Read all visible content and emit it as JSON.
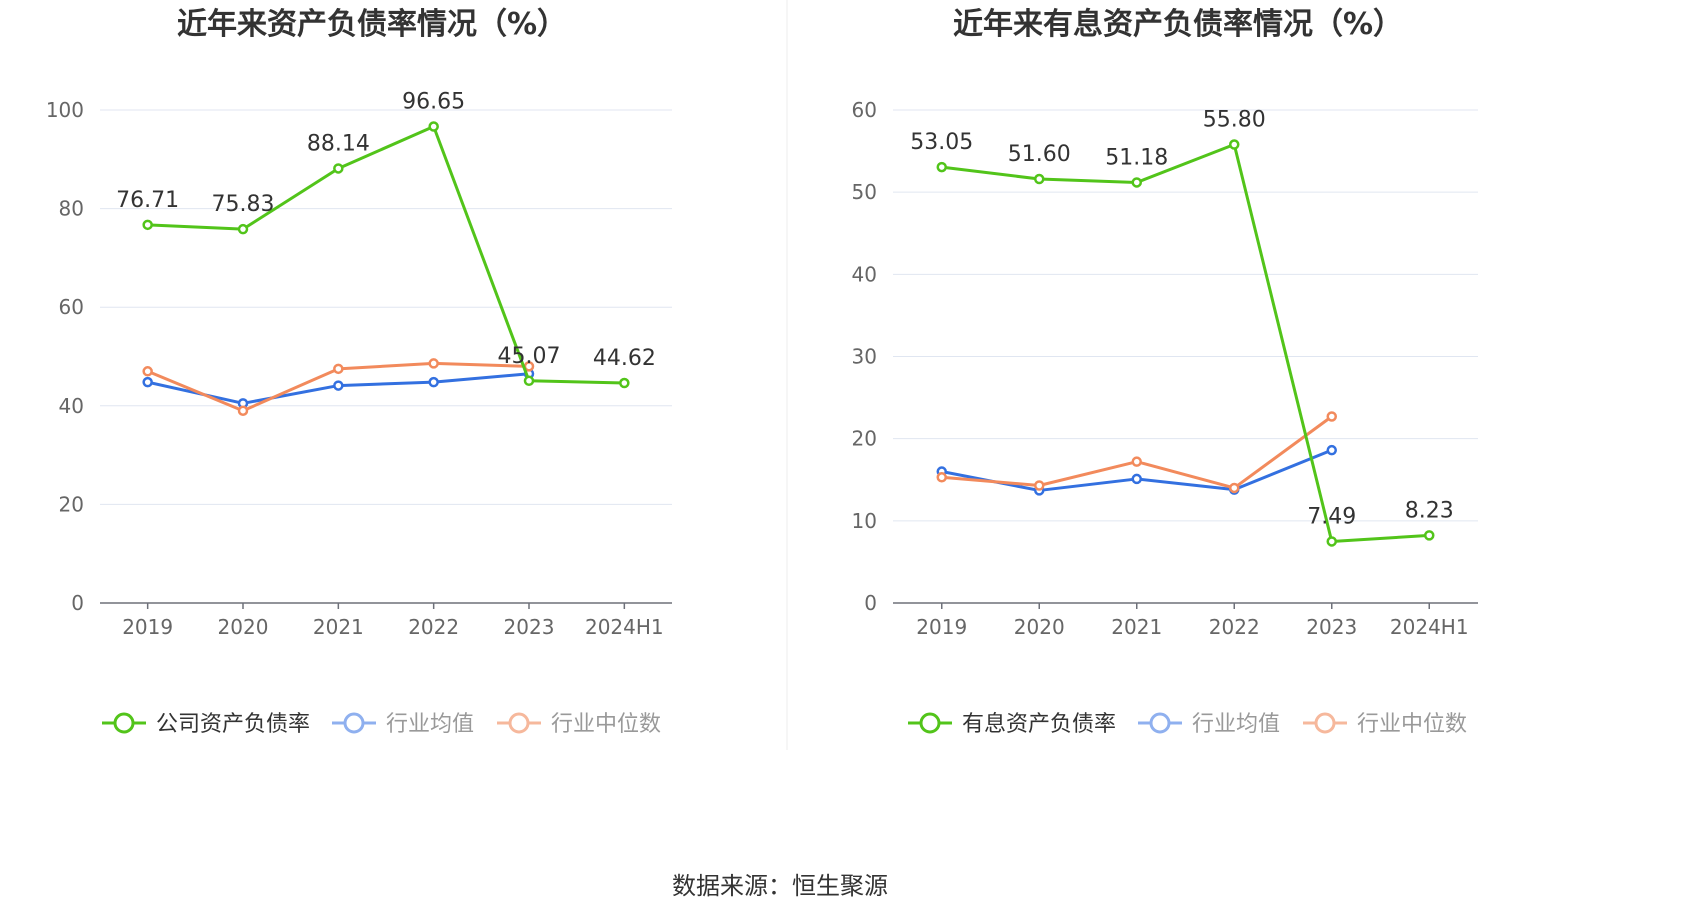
{
  "chart_data": [
    {
      "type": "line",
      "title": "近年来资产负债率情况（%）",
      "categories": [
        "2019",
        "2020",
        "2021",
        "2022",
        "2023",
        "2024H1"
      ],
      "ylim": [
        0,
        100
      ],
      "yticks": [
        0,
        20,
        40,
        60,
        80,
        100
      ],
      "grid": true,
      "legend_position": "bottom",
      "series": [
        {
          "name": "公司资产负债率",
          "color": "#52c41a",
          "labeled": true,
          "values": [
            76.71,
            75.83,
            88.14,
            96.65,
            45.07,
            44.62
          ],
          "labels": [
            "76.71",
            "75.83",
            "88.14",
            "96.65",
            "45.07",
            "44.62"
          ]
        },
        {
          "name": "行业均值",
          "color": "#3370e0",
          "labeled": false,
          "values": [
            44.8,
            40.5,
            44.1,
            44.8,
            46.5,
            null
          ]
        },
        {
          "name": "行业中位数",
          "color": "#f28a5c",
          "labeled": false,
          "values": [
            47.0,
            39.0,
            47.5,
            48.6,
            48.0,
            null
          ]
        }
      ]
    },
    {
      "type": "line",
      "title": "近年来有息资产负债率情况（%）",
      "categories": [
        "2019",
        "2020",
        "2021",
        "2022",
        "2023",
        "2024H1"
      ],
      "ylim": [
        0,
        60
      ],
      "yticks": [
        0,
        10,
        20,
        30,
        40,
        50,
        60
      ],
      "grid": true,
      "legend_position": "bottom",
      "series": [
        {
          "name": "有息资产负债率",
          "color": "#52c41a",
          "labeled": true,
          "values": [
            53.05,
            51.6,
            51.18,
            55.8,
            7.49,
            8.23
          ],
          "labels": [
            "53.05",
            "51.60",
            "51.18",
            "55.80",
            "7.49",
            "8.23"
          ]
        },
        {
          "name": "行业均值",
          "color": "#3370e0",
          "labeled": false,
          "values": [
            16.0,
            13.7,
            15.1,
            13.8,
            18.6,
            null
          ]
        },
        {
          "name": "行业中位数",
          "color": "#f28a5c",
          "labeled": false,
          "values": [
            15.3,
            14.3,
            17.2,
            14.0,
            22.7,
            null
          ]
        }
      ]
    }
  ],
  "footer": {
    "source": "数据来源：恒生聚源"
  }
}
